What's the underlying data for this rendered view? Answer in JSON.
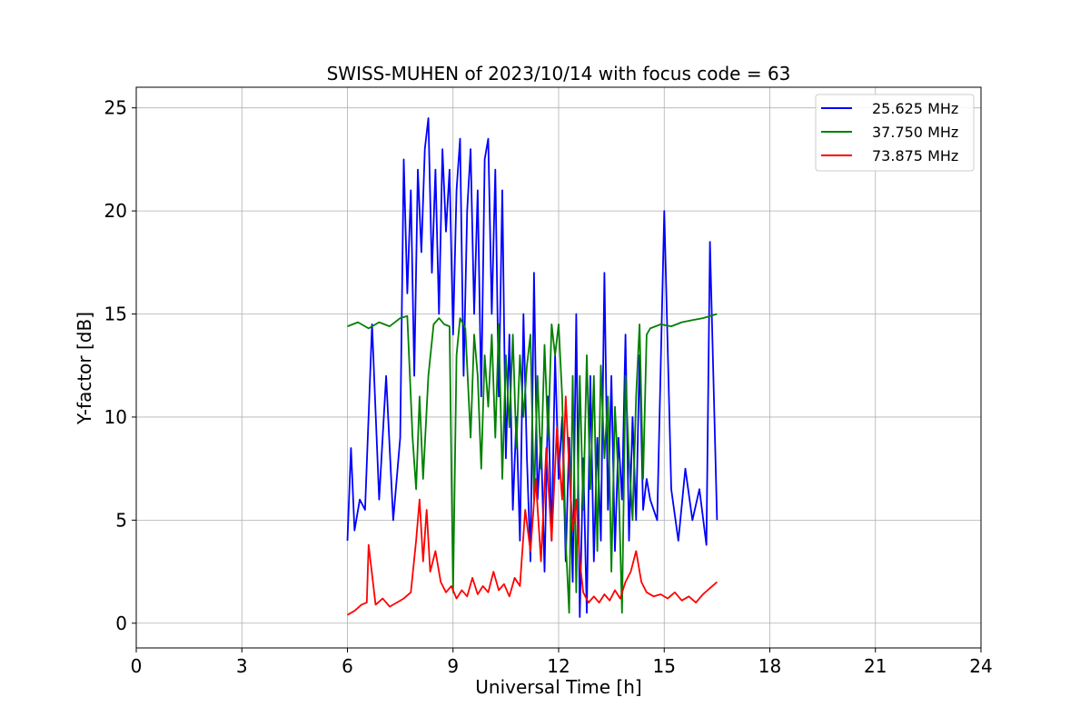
{
  "chart_data": {
    "type": "line",
    "title": "SWISS-MUHEN of 2023/10/14 with focus code = 63",
    "xlabel": "Universal Time [h]",
    "ylabel": "Y-factor [dB]",
    "xlim": [
      0,
      24
    ],
    "ylim": [
      -1.2,
      26
    ],
    "xticks": [
      0,
      3,
      6,
      9,
      12,
      15,
      18,
      21,
      24
    ],
    "yticks": [
      0,
      5,
      10,
      15,
      20,
      25
    ],
    "grid": true,
    "legend_position": "top-right",
    "series": [
      {
        "name": "25.625 MHz",
        "color": "#0000ff",
        "x": [
          6.0,
          6.1,
          6.2,
          6.35,
          6.5,
          6.7,
          6.9,
          7.1,
          7.3,
          7.5,
          7.6,
          7.7,
          7.8,
          7.9,
          8.0,
          8.1,
          8.2,
          8.3,
          8.4,
          8.5,
          8.6,
          8.7,
          8.8,
          8.9,
          9.0,
          9.1,
          9.2,
          9.3,
          9.4,
          9.5,
          9.6,
          9.7,
          9.8,
          9.9,
          10.0,
          10.1,
          10.2,
          10.3,
          10.4,
          10.5,
          10.6,
          10.7,
          10.8,
          10.9,
          11.0,
          11.1,
          11.2,
          11.3,
          11.4,
          11.5,
          11.6,
          11.7,
          11.8,
          11.9,
          12.0,
          12.1,
          12.2,
          12.3,
          12.4,
          12.5,
          12.6,
          12.7,
          12.8,
          12.9,
          13.0,
          13.1,
          13.2,
          13.3,
          13.4,
          13.5,
          13.6,
          13.7,
          13.8,
          13.9,
          14.0,
          14.1,
          14.2,
          14.3,
          14.4,
          14.5,
          14.6,
          14.8,
          15.0,
          15.2,
          15.4,
          15.6,
          15.8,
          16.0,
          16.2,
          16.3,
          16.5
        ],
        "y": [
          4.0,
          8.5,
          4.5,
          6.0,
          5.5,
          14.5,
          6.0,
          12.0,
          5.0,
          9.0,
          22.5,
          16.0,
          21.0,
          12.0,
          22.0,
          18.0,
          23.0,
          24.5,
          17.0,
          22.0,
          15.0,
          23.0,
          19.0,
          22.0,
          14.0,
          21.0,
          23.5,
          12.0,
          20.0,
          23.0,
          15.0,
          21.0,
          11.0,
          22.5,
          23.5,
          15.0,
          22.0,
          11.0,
          21.0,
          8.0,
          14.0,
          5.5,
          10.0,
          4.0,
          15.0,
          8.0,
          3.0,
          17.0,
          6.0,
          9.0,
          2.5,
          11.0,
          4.0,
          13.0,
          7.0,
          10.0,
          3.0,
          9.0,
          2.0,
          15.0,
          0.3,
          8.0,
          0.5,
          12.0,
          3.0,
          9.0,
          4.0,
          17.0,
          5.5,
          12.0,
          3.5,
          9.0,
          6.0,
          14.0,
          4.0,
          10.0,
          5.0,
          13.0,
          5.5,
          7.0,
          6.0,
          5.0,
          20.0,
          6.5,
          4.0,
          7.5,
          5.0,
          6.5,
          3.8,
          18.5,
          5.0
        ]
      },
      {
        "name": "37.750 MHz",
        "color": "#008000",
        "x": [
          6.0,
          6.3,
          6.6,
          6.9,
          7.2,
          7.5,
          7.7,
          7.85,
          7.95,
          8.05,
          8.15,
          8.3,
          8.45,
          8.6,
          8.75,
          8.9,
          9.0,
          9.1,
          9.2,
          9.35,
          9.5,
          9.6,
          9.7,
          9.8,
          9.9,
          10.0,
          10.1,
          10.2,
          10.3,
          10.4,
          10.5,
          10.6,
          10.7,
          10.8,
          10.9,
          11.0,
          11.1,
          11.2,
          11.3,
          11.4,
          11.5,
          11.6,
          11.7,
          11.8,
          11.9,
          12.0,
          12.1,
          12.2,
          12.3,
          12.4,
          12.5,
          12.6,
          12.7,
          12.8,
          12.9,
          13.0,
          13.1,
          13.2,
          13.3,
          13.4,
          13.5,
          13.6,
          13.7,
          13.8,
          13.9,
          14.0,
          14.1,
          14.2,
          14.3,
          14.4,
          14.5,
          14.6,
          14.9,
          15.2,
          15.5,
          15.8,
          16.1,
          16.3,
          16.5
        ],
        "y": [
          14.4,
          14.6,
          14.3,
          14.6,
          14.4,
          14.8,
          14.9,
          9.0,
          6.5,
          11.0,
          7.0,
          12.0,
          14.5,
          14.8,
          14.5,
          14.4,
          1.5,
          13.0,
          14.8,
          14.3,
          9.0,
          14.0,
          12.0,
          7.5,
          13.0,
          10.5,
          14.0,
          9.0,
          14.5,
          7.0,
          13.0,
          9.5,
          14.0,
          8.5,
          13.0,
          10.0,
          12.5,
          14.0,
          6.0,
          12.0,
          7.5,
          13.5,
          9.0,
          14.5,
          13.0,
          14.5,
          11.0,
          4.0,
          0.5,
          12.0,
          1.5,
          12.0,
          5.5,
          13.0,
          6.5,
          12.0,
          3.5,
          12.5,
          8.0,
          11.0,
          2.5,
          10.5,
          7.0,
          0.5,
          12.0,
          8.0,
          5.0,
          11.0,
          14.5,
          7.0,
          14.0,
          14.3,
          14.5,
          14.4,
          14.6,
          14.7,
          14.8,
          14.9,
          15.0
        ]
      },
      {
        "name": "73.875 MHz",
        "color": "#ff0000",
        "x": [
          6.0,
          6.2,
          6.4,
          6.55,
          6.6,
          6.8,
          7.0,
          7.2,
          7.4,
          7.6,
          7.8,
          7.95,
          8.05,
          8.15,
          8.25,
          8.35,
          8.5,
          8.65,
          8.8,
          8.95,
          9.1,
          9.25,
          9.4,
          9.55,
          9.7,
          9.85,
          10.0,
          10.15,
          10.3,
          10.45,
          10.6,
          10.75,
          10.9,
          11.05,
          11.2,
          11.35,
          11.5,
          11.65,
          11.8,
          11.95,
          12.1,
          12.2,
          12.3,
          12.4,
          12.5,
          12.6,
          12.7,
          12.85,
          13.0,
          13.15,
          13.3,
          13.45,
          13.6,
          13.75,
          13.9,
          14.05,
          14.2,
          14.35,
          14.5,
          14.7,
          14.9,
          15.1,
          15.3,
          15.5,
          15.7,
          15.9,
          16.1,
          16.3,
          16.5
        ],
        "y": [
          0.4,
          0.6,
          0.9,
          1.0,
          3.8,
          0.9,
          1.2,
          0.8,
          1.0,
          1.2,
          1.5,
          4.0,
          6.0,
          3.0,
          5.5,
          2.5,
          3.5,
          2.0,
          1.5,
          1.8,
          1.2,
          1.6,
          1.3,
          2.2,
          1.4,
          1.8,
          1.5,
          2.5,
          1.6,
          1.9,
          1.3,
          2.2,
          1.8,
          5.5,
          3.5,
          7.0,
          3.0,
          8.5,
          4.0,
          9.5,
          6.0,
          11.0,
          7.5,
          4.5,
          6.0,
          3.0,
          1.5,
          1.0,
          1.3,
          1.0,
          1.4,
          1.1,
          1.6,
          1.2,
          2.0,
          2.5,
          3.5,
          2.0,
          1.5,
          1.3,
          1.4,
          1.2,
          1.5,
          1.1,
          1.3,
          1.0,
          1.4,
          1.7,
          2.0
        ]
      }
    ]
  }
}
